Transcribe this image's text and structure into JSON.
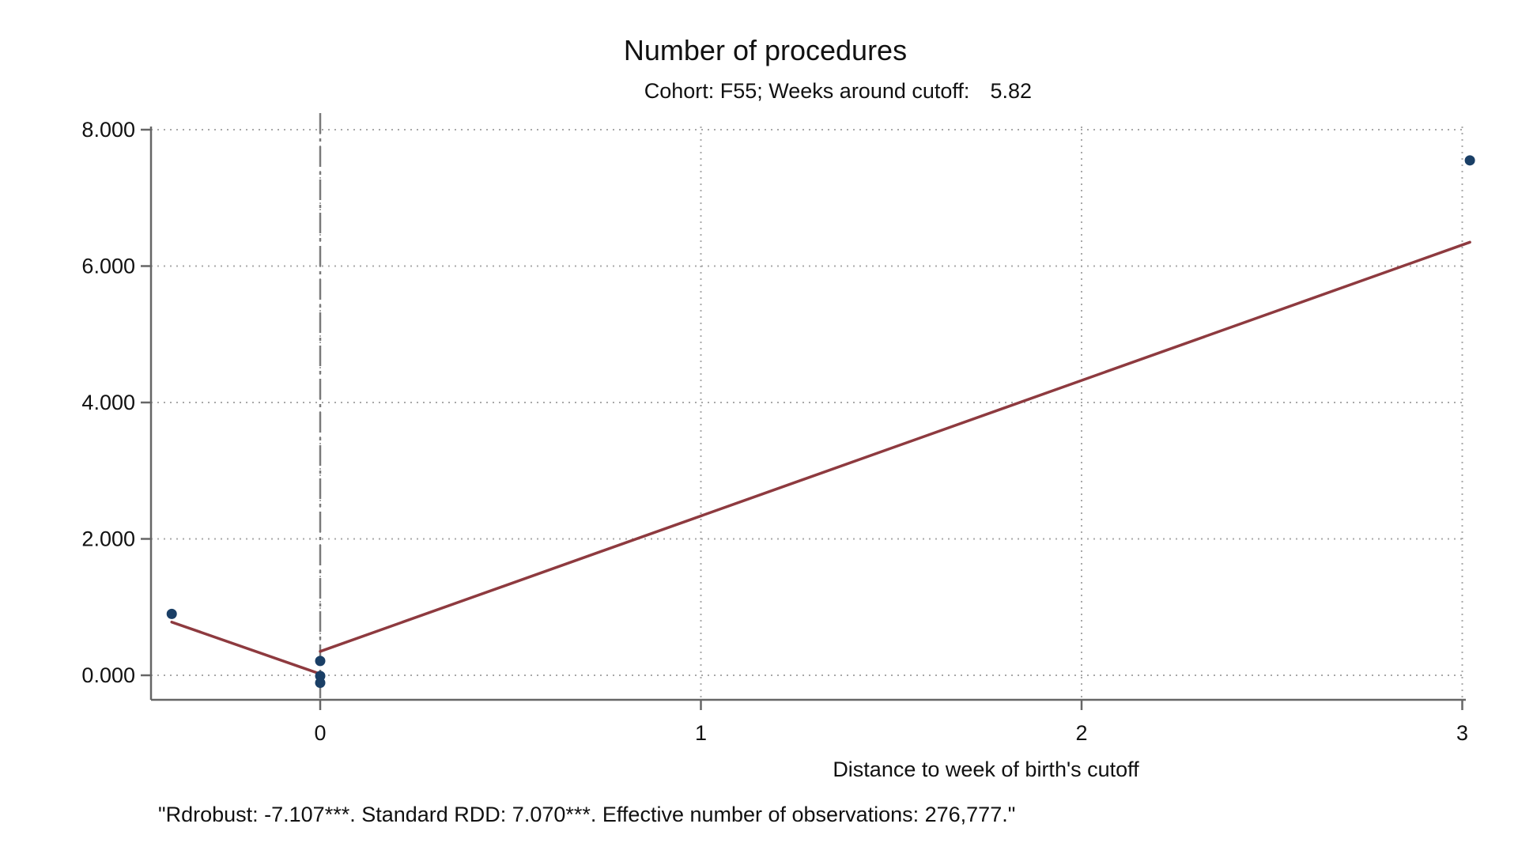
{
  "chart_data": {
    "type": "scatter",
    "title": "Number of procedures",
    "subtitle_prefix": "Cohort: F55; Weeks around cutoff:",
    "subtitle_value": "5.82",
    "xlabel": "Distance to week of birth's cutoff",
    "ylabel": "",
    "note": "\"Rdrobust: -7.107***. Standard RDD: 7.070***. Effective number of observations: 276,777.\"",
    "xlim": [
      -0.45,
      3.02
    ],
    "ylim": [
      -0.38,
      8.0
    ],
    "x_ticks": [
      0,
      1,
      2,
      3
    ],
    "x_tick_labels": [
      "0",
      "1",
      "2",
      "3"
    ],
    "y_ticks": [
      0,
      2,
      4,
      6,
      8
    ],
    "y_tick_labels": [
      "0.000",
      "2.000",
      "4.000",
      "6.000",
      "8.000"
    ],
    "grid": true,
    "cutoff_x": 0,
    "series": [
      {
        "kind": "points",
        "color": "#1a3f66",
        "points": [
          {
            "x": -0.39,
            "y": 0.9
          },
          {
            "x": 0.0,
            "y": 0.21
          },
          {
            "x": 0.0,
            "y": -0.01
          },
          {
            "x": 0.0,
            "y": -0.11
          },
          {
            "x": 3.02,
            "y": 7.55
          }
        ]
      },
      {
        "kind": "fit_left",
        "color": "#8e3a3f",
        "points": [
          {
            "x": -0.39,
            "y": 0.78
          },
          {
            "x": 0.0,
            "y": 0.02
          }
        ]
      },
      {
        "kind": "fit_right",
        "color": "#8e3a3f",
        "points": [
          {
            "x": 0.0,
            "y": 0.35
          },
          {
            "x": 3.02,
            "y": 6.35
          }
        ]
      }
    ]
  }
}
